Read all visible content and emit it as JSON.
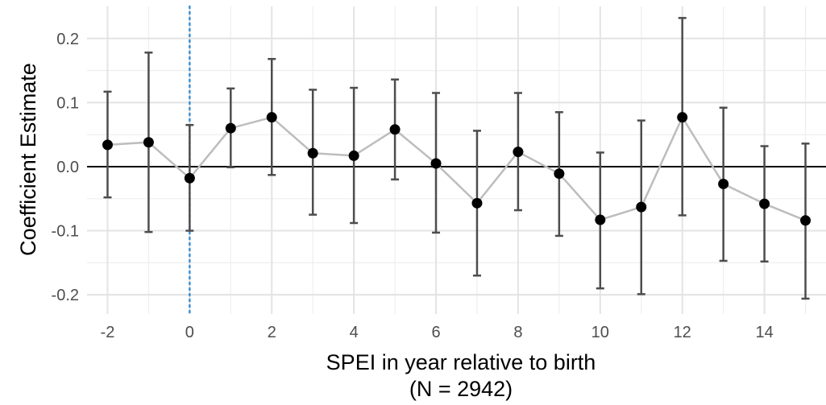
{
  "chart_data": {
    "type": "scatter",
    "xlabel": "SPEI in year relative to birth",
    "xlabel_line2": "(N = 2942)",
    "ylabel": "Coefficient Estimate",
    "xlim": [
      -2.5,
      15.5
    ],
    "ylim": [
      -0.23,
      0.25
    ],
    "x_ticks": [
      -2,
      0,
      2,
      4,
      6,
      8,
      10,
      12,
      14
    ],
    "x_tick_labels": [
      "-2",
      "0",
      "2",
      "4",
      "6",
      "8",
      "10",
      "12",
      "14"
    ],
    "y_ticks": [
      0.2,
      0.1,
      0.0,
      -0.1,
      -0.2
    ],
    "y_tick_labels": [
      "0.2",
      "0.1",
      "0.0",
      "-0.1",
      "-0.2"
    ],
    "grid": true,
    "reference_hline": 0,
    "reference_vline": 0,
    "colors": {
      "point": "#000000",
      "connect_line": "#bdbdbd",
      "errorbar": "#4d4d4d",
      "hline": "#000000",
      "vline": "#3a8fd6",
      "grid_major": "#e3e3e3",
      "grid_minor": "#efefef"
    },
    "x": [
      -2,
      -1,
      0,
      1,
      2,
      3,
      4,
      5,
      6,
      7,
      8,
      9,
      10,
      11,
      12,
      13,
      14,
      15
    ],
    "estimate": [
      0.034,
      0.038,
      -0.018,
      0.06,
      0.077,
      0.021,
      0.017,
      0.058,
      0.005,
      -0.057,
      0.023,
      -0.011,
      -0.083,
      -0.063,
      0.077,
      -0.027,
      -0.058,
      -0.084
    ],
    "ci_low": [
      -0.048,
      -0.102,
      -0.1,
      -0.001,
      -0.013,
      -0.075,
      -0.088,
      -0.02,
      -0.103,
      -0.17,
      -0.068,
      -0.108,
      -0.19,
      -0.199,
      -0.076,
      -0.147,
      -0.148,
      -0.206
    ],
    "ci_high": [
      0.117,
      0.178,
      0.065,
      0.122,
      0.168,
      0.12,
      0.123,
      0.136,
      0.115,
      0.056,
      0.115,
      0.085,
      0.022,
      0.072,
      0.232,
      0.092,
      0.032,
      0.036
    ]
  }
}
